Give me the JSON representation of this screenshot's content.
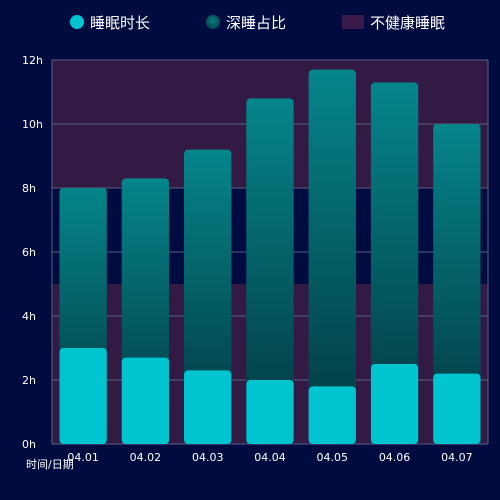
{
  "chart_data": {
    "type": "bar",
    "categories": [
      "04.01",
      "04.02",
      "04.03",
      "04.04",
      "04.05",
      "04.06",
      "04.07"
    ],
    "series": [
      {
        "name": "睡眠时长",
        "values": [
          8.0,
          8.3,
          9.2,
          10.8,
          11.7,
          11.3,
          10.0
        ]
      },
      {
        "name": "深睡占比",
        "values": [
          3.0,
          2.7,
          2.3,
          2.0,
          1.8,
          2.5,
          2.2
        ]
      }
    ],
    "unhealthy_ranges": [
      [
        0,
        5
      ],
      [
        8,
        12
      ]
    ],
    "legend": [
      "睡眠时长",
      "深睡占比",
      "不健康睡眠"
    ],
    "y_ticks": [
      "0h",
      "2h",
      "4h",
      "6h",
      "8h",
      "10h",
      "12h"
    ],
    "ylim": [
      0,
      12
    ],
    "xlabel": "时间/日期",
    "ylabel": "",
    "grid": true,
    "legend_position": "top",
    "colors": {
      "background": "#000b3f",
      "unhealthy_band": "#331a45",
      "total_bar_top": "#05858a",
      "total_bar_bottom": "#02363f",
      "deep_bar": "#00c4d0",
      "grid": "#5a6080"
    }
  }
}
